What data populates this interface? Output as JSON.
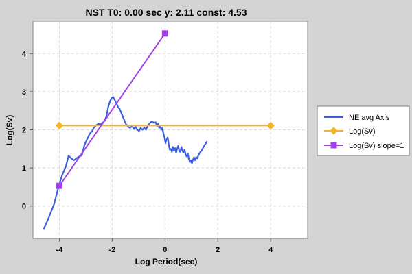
{
  "chart_data": {
    "type": "line",
    "title": "NST T0: 0.00 sec  y: 2.11 const: 4.53",
    "xlabel": "Log Period(sec)",
    "ylabel": "Log(Sv)",
    "xlim": [
      -5.0,
      5.4
    ],
    "ylim": [
      -0.85,
      4.85
    ],
    "xticks": [
      -4,
      -2,
      0,
      2,
      4
    ],
    "yticks": [
      0,
      1,
      2,
      3,
      4
    ],
    "grid": true,
    "legend": {
      "position": "right"
    },
    "series": [
      {
        "name": "NE avg Axis",
        "color": "#3a5fe0",
        "marker": "none",
        "points": [
          [
            -4.6,
            -0.62
          ],
          [
            -4.4,
            -0.3
          ],
          [
            -4.2,
            0.05
          ],
          [
            -4.05,
            0.45
          ],
          [
            -3.9,
            0.8
          ],
          [
            -3.75,
            1.05
          ],
          [
            -3.65,
            1.32
          ],
          [
            -3.55,
            1.25
          ],
          [
            -3.45,
            1.2
          ],
          [
            -3.35,
            1.25
          ],
          [
            -3.25,
            1.3
          ],
          [
            -3.15,
            1.33
          ],
          [
            -3.05,
            1.6
          ],
          [
            -2.95,
            1.75
          ],
          [
            -2.85,
            1.9
          ],
          [
            -2.75,
            1.97
          ],
          [
            -2.7,
            2.05
          ],
          [
            -2.6,
            2.12
          ],
          [
            -2.52,
            2.16
          ],
          [
            -2.45,
            2.14
          ],
          [
            -2.38,
            2.18
          ],
          [
            -2.3,
            2.22
          ],
          [
            -2.22,
            2.35
          ],
          [
            -2.15,
            2.6
          ],
          [
            -2.08,
            2.75
          ],
          [
            -2.02,
            2.84
          ],
          [
            -1.96,
            2.86
          ],
          [
            -1.9,
            2.78
          ],
          [
            -1.84,
            2.7
          ],
          [
            -1.78,
            2.6
          ],
          [
            -1.72,
            2.55
          ],
          [
            -1.66,
            2.45
          ],
          [
            -1.6,
            2.35
          ],
          [
            -1.54,
            2.25
          ],
          [
            -1.48,
            2.15
          ],
          [
            -1.4,
            2.08
          ],
          [
            -1.32,
            2.05
          ],
          [
            -1.24,
            2.1
          ],
          [
            -1.18,
            2.02
          ],
          [
            -1.12,
            2.08
          ],
          [
            -1.05,
            2.0
          ],
          [
            -0.98,
            1.97
          ],
          [
            -0.92,
            2.05
          ],
          [
            -0.85,
            2.0
          ],
          [
            -0.78,
            2.06
          ],
          [
            -0.72,
            2.0
          ],
          [
            -0.66,
            2.1
          ],
          [
            -0.6,
            2.15
          ],
          [
            -0.54,
            2.2
          ],
          [
            -0.48,
            2.22
          ],
          [
            -0.42,
            2.18
          ],
          [
            -0.36,
            2.2
          ],
          [
            -0.3,
            2.1
          ],
          [
            -0.26,
            2.16
          ],
          [
            -0.22,
            2.05
          ],
          [
            -0.18,
            2.1
          ],
          [
            -0.14,
            2.0
          ],
          [
            -0.1,
            2.05
          ],
          [
            -0.06,
            1.9
          ],
          [
            -0.02,
            1.8
          ],
          [
            0.02,
            1.65
          ],
          [
            0.06,
            1.75
          ],
          [
            0.1,
            1.8
          ],
          [
            0.14,
            1.62
          ],
          [
            0.18,
            1.48
          ],
          [
            0.22,
            1.5
          ],
          [
            0.26,
            1.42
          ],
          [
            0.3,
            1.55
          ],
          [
            0.34,
            1.45
          ],
          [
            0.38,
            1.52
          ],
          [
            0.42,
            1.4
          ],
          [
            0.46,
            1.5
          ],
          [
            0.5,
            1.58
          ],
          [
            0.54,
            1.45
          ],
          [
            0.58,
            1.42
          ],
          [
            0.62,
            1.55
          ],
          [
            0.66,
            1.45
          ],
          [
            0.7,
            1.4
          ],
          [
            0.74,
            1.48
          ],
          [
            0.78,
            1.35
          ],
          [
            0.82,
            1.3
          ],
          [
            0.86,
            1.38
          ],
          [
            0.9,
            1.25
          ],
          [
            0.94,
            1.15
          ],
          [
            0.98,
            1.2
          ],
          [
            1.02,
            1.12
          ],
          [
            1.06,
            1.22
          ],
          [
            1.1,
            1.28
          ],
          [
            1.14,
            1.2
          ],
          [
            1.18,
            1.28
          ],
          [
            1.22,
            1.25
          ],
          [
            1.26,
            1.32
          ],
          [
            1.3,
            1.38
          ],
          [
            1.34,
            1.42
          ],
          [
            1.38,
            1.45
          ],
          [
            1.42,
            1.5
          ],
          [
            1.46,
            1.55
          ],
          [
            1.5,
            1.6
          ],
          [
            1.55,
            1.65
          ],
          [
            1.6,
            1.7
          ]
        ]
      },
      {
        "name": "Log(Sv)",
        "color": "#f2b52b",
        "marker": "diamond",
        "points": [
          [
            -4,
            2.11
          ],
          [
            4,
            2.11
          ]
        ]
      },
      {
        "name": "Log(Sv) slope=1",
        "color": "#a040e6",
        "marker": "square",
        "points": [
          [
            -4,
            0.53
          ],
          [
            0,
            4.53
          ]
        ]
      }
    ]
  }
}
